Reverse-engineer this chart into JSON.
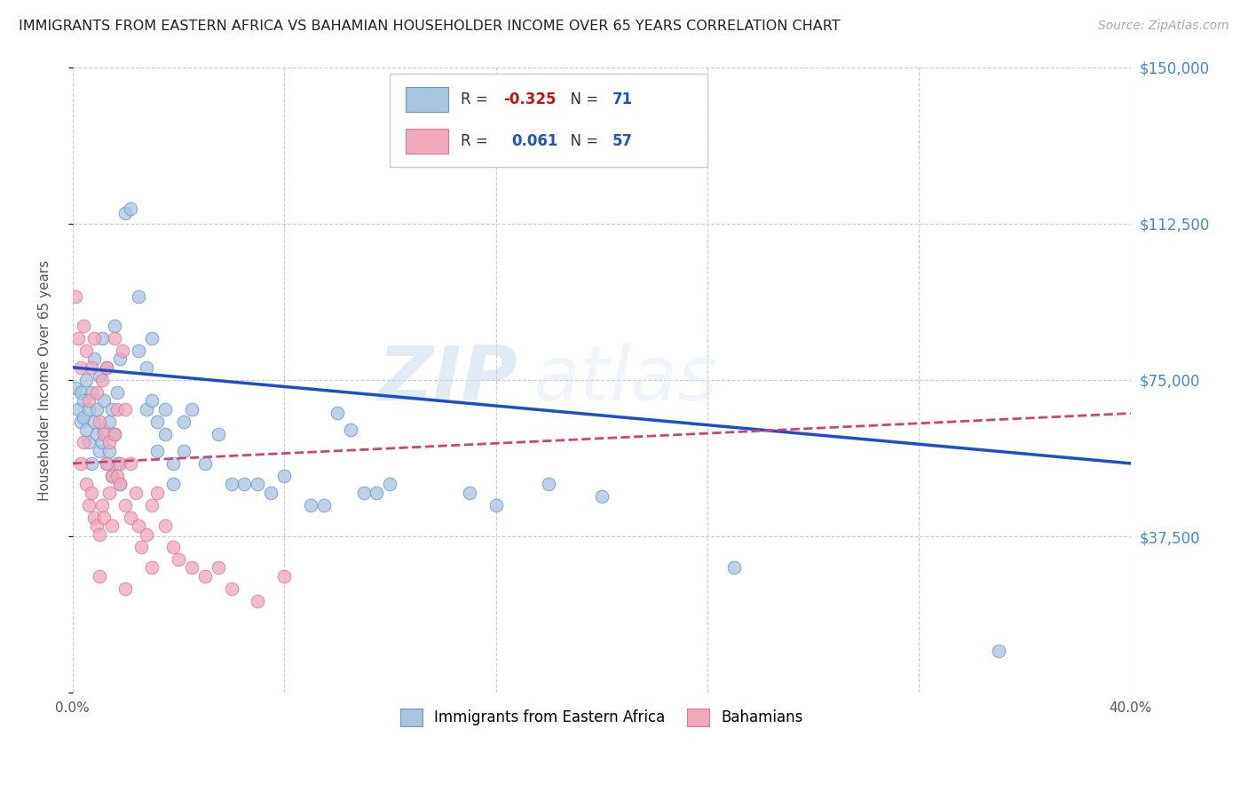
{
  "title": "IMMIGRANTS FROM EASTERN AFRICA VS BAHAMIAN HOUSEHOLDER INCOME OVER 65 YEARS CORRELATION CHART",
  "source": "Source: ZipAtlas.com",
  "ylabel": "Householder Income Over 65 years",
  "xlim": [
    0.0,
    0.4
  ],
  "ylim": [
    0,
    150000
  ],
  "yticks": [
    0,
    37500,
    75000,
    112500,
    150000
  ],
  "ytick_labels": [
    "",
    "$37,500",
    "$75,000",
    "$112,500",
    "$150,000"
  ],
  "xticks": [
    0.0,
    0.08,
    0.16,
    0.24,
    0.32,
    0.4
  ],
  "xtick_labels": [
    "0.0%",
    "",
    "",
    "",
    "",
    "40.0%"
  ],
  "background_color": "#ffffff",
  "grid_color": "#cccccc",
  "watermark_zip": "ZIP",
  "watermark_atlas": "atlas",
  "blue_color": "#aac4e0",
  "pink_color": "#f0a8bb",
  "blue_edge_color": "#6699cc",
  "pink_edge_color": "#dd7799",
  "blue_line_color": "#1a4fcc",
  "pink_line_color": "#cc4477",
  "title_color": "#222222",
  "axis_label_color": "#555555",
  "tick_color_right": "#4488cc",
  "blue_scatter": [
    [
      0.001,
      73000
    ],
    [
      0.002,
      68000
    ],
    [
      0.003,
      72000
    ],
    [
      0.003,
      65000
    ],
    [
      0.004,
      70000
    ],
    [
      0.004,
      66000
    ],
    [
      0.005,
      75000
    ],
    [
      0.005,
      63000
    ],
    [
      0.006,
      68000
    ],
    [
      0.006,
      60000
    ],
    [
      0.007,
      72000
    ],
    [
      0.007,
      55000
    ],
    [
      0.008,
      80000
    ],
    [
      0.008,
      65000
    ],
    [
      0.009,
      68000
    ],
    [
      0.009,
      62000
    ],
    [
      0.01,
      76000
    ],
    [
      0.01,
      58000
    ],
    [
      0.011,
      85000
    ],
    [
      0.011,
      60000
    ],
    [
      0.012,
      70000
    ],
    [
      0.012,
      63000
    ],
    [
      0.013,
      78000
    ],
    [
      0.013,
      55000
    ],
    [
      0.014,
      65000
    ],
    [
      0.014,
      58000
    ],
    [
      0.015,
      68000
    ],
    [
      0.015,
      52000
    ],
    [
      0.016,
      88000
    ],
    [
      0.016,
      62000
    ],
    [
      0.017,
      72000
    ],
    [
      0.017,
      55000
    ],
    [
      0.018,
      80000
    ],
    [
      0.018,
      50000
    ],
    [
      0.02,
      115000
    ],
    [
      0.022,
      116000
    ],
    [
      0.025,
      95000
    ],
    [
      0.025,
      82000
    ],
    [
      0.028,
      78000
    ],
    [
      0.028,
      68000
    ],
    [
      0.03,
      85000
    ],
    [
      0.03,
      70000
    ],
    [
      0.032,
      65000
    ],
    [
      0.032,
      58000
    ],
    [
      0.035,
      68000
    ],
    [
      0.035,
      62000
    ],
    [
      0.038,
      55000
    ],
    [
      0.038,
      50000
    ],
    [
      0.042,
      65000
    ],
    [
      0.042,
      58000
    ],
    [
      0.045,
      68000
    ],
    [
      0.05,
      55000
    ],
    [
      0.055,
      62000
    ],
    [
      0.06,
      50000
    ],
    [
      0.065,
      50000
    ],
    [
      0.07,
      50000
    ],
    [
      0.075,
      48000
    ],
    [
      0.08,
      52000
    ],
    [
      0.09,
      45000
    ],
    [
      0.095,
      45000
    ],
    [
      0.1,
      67000
    ],
    [
      0.105,
      63000
    ],
    [
      0.11,
      48000
    ],
    [
      0.115,
      48000
    ],
    [
      0.12,
      50000
    ],
    [
      0.15,
      48000
    ],
    [
      0.16,
      45000
    ],
    [
      0.18,
      50000
    ],
    [
      0.2,
      47000
    ],
    [
      0.25,
      30000
    ],
    [
      0.35,
      10000
    ]
  ],
  "pink_scatter": [
    [
      0.001,
      95000
    ],
    [
      0.002,
      85000
    ],
    [
      0.003,
      78000
    ],
    [
      0.003,
      55000
    ],
    [
      0.004,
      88000
    ],
    [
      0.004,
      60000
    ],
    [
      0.005,
      82000
    ],
    [
      0.005,
      50000
    ],
    [
      0.006,
      70000
    ],
    [
      0.006,
      45000
    ],
    [
      0.007,
      78000
    ],
    [
      0.007,
      48000
    ],
    [
      0.008,
      85000
    ],
    [
      0.008,
      42000
    ],
    [
      0.009,
      72000
    ],
    [
      0.009,
      40000
    ],
    [
      0.01,
      65000
    ],
    [
      0.01,
      38000
    ],
    [
      0.01,
      28000
    ],
    [
      0.011,
      75000
    ],
    [
      0.011,
      45000
    ],
    [
      0.012,
      62000
    ],
    [
      0.012,
      42000
    ],
    [
      0.013,
      78000
    ],
    [
      0.013,
      55000
    ],
    [
      0.014,
      60000
    ],
    [
      0.014,
      48000
    ],
    [
      0.015,
      52000
    ],
    [
      0.015,
      40000
    ],
    [
      0.016,
      85000
    ],
    [
      0.016,
      62000
    ],
    [
      0.017,
      68000
    ],
    [
      0.017,
      52000
    ],
    [
      0.018,
      55000
    ],
    [
      0.018,
      50000
    ],
    [
      0.019,
      82000
    ],
    [
      0.02,
      68000
    ],
    [
      0.02,
      45000
    ],
    [
      0.02,
      25000
    ],
    [
      0.022,
      55000
    ],
    [
      0.022,
      42000
    ],
    [
      0.024,
      48000
    ],
    [
      0.025,
      40000
    ],
    [
      0.026,
      35000
    ],
    [
      0.028,
      38000
    ],
    [
      0.03,
      45000
    ],
    [
      0.03,
      30000
    ],
    [
      0.032,
      48000
    ],
    [
      0.035,
      40000
    ],
    [
      0.038,
      35000
    ],
    [
      0.04,
      32000
    ],
    [
      0.045,
      30000
    ],
    [
      0.05,
      28000
    ],
    [
      0.055,
      30000
    ],
    [
      0.06,
      25000
    ],
    [
      0.07,
      22000
    ],
    [
      0.08,
      28000
    ]
  ],
  "blue_line_x": [
    0.0,
    0.4
  ],
  "blue_line_y": [
    78000,
    55000
  ],
  "pink_line_x": [
    0.0,
    0.4
  ],
  "pink_line_y": [
    55000,
    67000
  ],
  "legend_r1_label": "R = ",
  "legend_r1_val": "-0.325",
  "legend_n1_label": "N = ",
  "legend_n1_val": "71",
  "legend_r2_label": "R = ",
  "legend_r2_val": "0.061",
  "legend_n2_label": "N = ",
  "legend_n2_val": "57",
  "bottom_legend_labels": [
    "Immigrants from Eastern Africa",
    "Bahamians"
  ]
}
